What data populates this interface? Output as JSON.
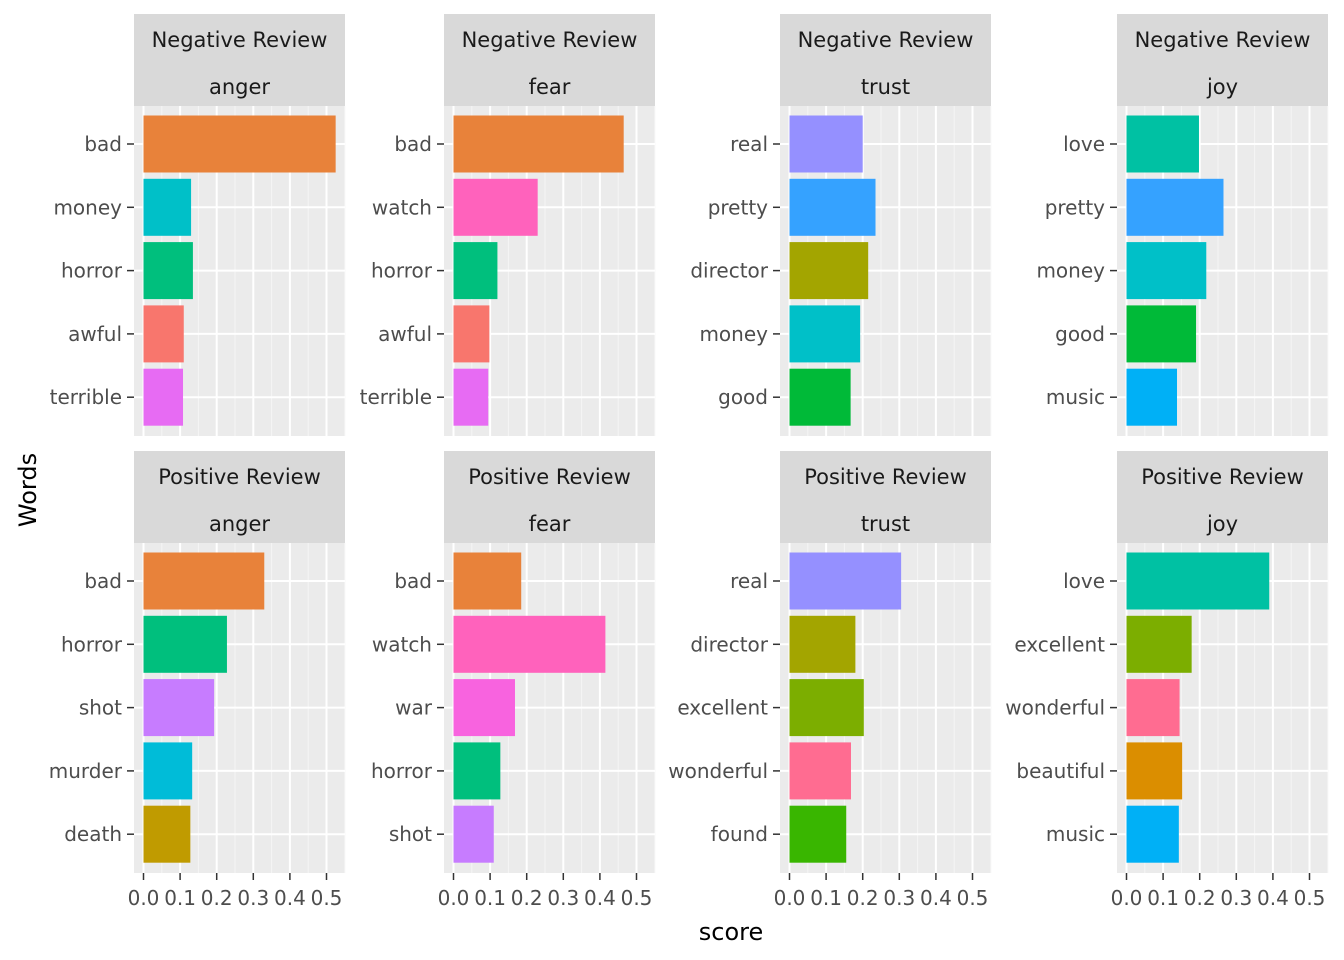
{
  "chart_data": {
    "type": "bar",
    "orientation": "horizontal",
    "xlabel": "score",
    "ylabel": "Words",
    "xlim": [
      0,
      0.55
    ],
    "x_ticks": [
      "0.0",
      "0.1",
      "0.2",
      "0.3",
      "0.4",
      "0.5"
    ],
    "x_tick_values": [
      0,
      0.1,
      0.2,
      0.3,
      0.4,
      0.5
    ],
    "grid": true,
    "legend": "none",
    "facets": [
      {
        "review": "Negative Review",
        "emotion": "anger",
        "bars": [
          {
            "word": "bad",
            "score": 0.525,
            "color": "#E8823A"
          },
          {
            "word": "money",
            "score": 0.13,
            "color": "#00C0C8"
          },
          {
            "word": "horror",
            "score": 0.135,
            "color": "#00BF7D"
          },
          {
            "word": "awful",
            "score": 0.11,
            "color": "#F8766D"
          },
          {
            "word": "terrible",
            "score": 0.108,
            "color": "#E76BF3"
          }
        ]
      },
      {
        "review": "Negative Review",
        "emotion": "fear",
        "bars": [
          {
            "word": "bad",
            "score": 0.465,
            "color": "#E8823A"
          },
          {
            "word": "watch",
            "score": 0.23,
            "color": "#FF62BC"
          },
          {
            "word": "horror",
            "score": 0.12,
            "color": "#00BF7D"
          },
          {
            "word": "awful",
            "score": 0.098,
            "color": "#F8766D"
          },
          {
            "word": "terrible",
            "score": 0.095,
            "color": "#E76BF3"
          }
        ]
      },
      {
        "review": "Negative Review",
        "emotion": "trust",
        "bars": [
          {
            "word": "real",
            "score": 0.2,
            "color": "#9590FF"
          },
          {
            "word": "pretty",
            "score": 0.235,
            "color": "#35A2FF"
          },
          {
            "word": "director",
            "score": 0.215,
            "color": "#A3A500"
          },
          {
            "word": "money",
            "score": 0.193,
            "color": "#00C0C8"
          },
          {
            "word": "good",
            "score": 0.167,
            "color": "#00BA38"
          }
        ]
      },
      {
        "review": "Negative Review",
        "emotion": "joy",
        "bars": [
          {
            "word": "love",
            "score": 0.198,
            "color": "#00C1A3"
          },
          {
            "word": "pretty",
            "score": 0.265,
            "color": "#35A2FF"
          },
          {
            "word": "money",
            "score": 0.218,
            "color": "#00C0C8"
          },
          {
            "word": "good",
            "score": 0.19,
            "color": "#00BA38"
          },
          {
            "word": "music",
            "score": 0.138,
            "color": "#00B0F6"
          }
        ]
      },
      {
        "review": "Positive Review",
        "emotion": "anger",
        "bars": [
          {
            "word": "bad",
            "score": 0.33,
            "color": "#E8823A"
          },
          {
            "word": "horror",
            "score": 0.228,
            "color": "#00BF7D"
          },
          {
            "word": "shot",
            "score": 0.193,
            "color": "#C77CFF"
          },
          {
            "word": "murder",
            "score": 0.133,
            "color": "#00BCD8"
          },
          {
            "word": "death",
            "score": 0.128,
            "color": "#C09B00"
          }
        ]
      },
      {
        "review": "Positive Review",
        "emotion": "fear",
        "bars": [
          {
            "word": "bad",
            "score": 0.185,
            "color": "#E8823A"
          },
          {
            "word": "watch",
            "score": 0.415,
            "color": "#FF62BC"
          },
          {
            "word": "war",
            "score": 0.168,
            "color": "#F863DF"
          },
          {
            "word": "horror",
            "score": 0.128,
            "color": "#00BF7D"
          },
          {
            "word": "shot",
            "score": 0.11,
            "color": "#C77CFF"
          }
        ]
      },
      {
        "review": "Positive Review",
        "emotion": "trust",
        "bars": [
          {
            "word": "real",
            "score": 0.305,
            "color": "#9590FF"
          },
          {
            "word": "director",
            "score": 0.18,
            "color": "#A3A500"
          },
          {
            "word": "excellent",
            "score": 0.203,
            "color": "#7CAE00"
          },
          {
            "word": "wonderful",
            "score": 0.168,
            "color": "#FF6C91"
          },
          {
            "word": "found",
            "score": 0.155,
            "color": "#39B600"
          }
        ]
      },
      {
        "review": "Positive Review",
        "emotion": "joy",
        "bars": [
          {
            "word": "love",
            "score": 0.39,
            "color": "#00C1A3"
          },
          {
            "word": "excellent",
            "score": 0.178,
            "color": "#7CAE00"
          },
          {
            "word": "wonderful",
            "score": 0.145,
            "color": "#FF6C91"
          },
          {
            "word": "beautiful",
            "score": 0.152,
            "color": "#DB8E00"
          },
          {
            "word": "music",
            "score": 0.143,
            "color": "#00B0F6"
          }
        ]
      }
    ]
  }
}
